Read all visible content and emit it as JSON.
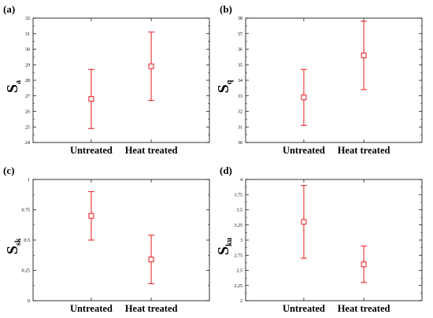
{
  "chart_data": [
    {
      "type": "scatter",
      "panel_label": "(a)",
      "ylabel": {
        "main": "S",
        "sub": "a"
      },
      "categories": [
        "Untreated",
        "Heat treated"
      ],
      "values": [
        26.8,
        28.9
      ],
      "error_low": [
        24.9,
        26.7
      ],
      "error_high": [
        28.7,
        31.1
      ],
      "ylim": [
        24,
        32
      ],
      "yticks": [
        24,
        25,
        26,
        27,
        28,
        29,
        30,
        31,
        32
      ],
      "ytick_labels": [
        "24",
        "25",
        "26",
        "27",
        "28",
        "29",
        "30",
        "31",
        "32"
      ],
      "marker": "open-square",
      "color": "#e8191c",
      "grid": false
    },
    {
      "type": "scatter",
      "panel_label": "(b)",
      "ylabel": {
        "main": "S",
        "sub": "q"
      },
      "categories": [
        "Untreated",
        "Heat treated"
      ],
      "values": [
        32.9,
        35.6
      ],
      "error_low": [
        31.1,
        33.4
      ],
      "error_high": [
        34.7,
        37.8
      ],
      "ylim": [
        30,
        38
      ],
      "yticks": [
        30,
        31,
        32,
        33,
        34,
        35,
        36,
        37,
        38
      ],
      "ytick_labels": [
        "30",
        "31",
        "32",
        "33",
        "34",
        "35",
        "36",
        "37",
        "38"
      ],
      "marker": "open-square",
      "color": "#e8191c",
      "grid": false
    },
    {
      "type": "scatter",
      "panel_label": "(c)",
      "ylabel": {
        "main": "S",
        "sub": "sk"
      },
      "categories": [
        "Untreated",
        "Heat treated"
      ],
      "values": [
        0.7,
        0.34
      ],
      "error_low": [
        0.5,
        0.14
      ],
      "error_high": [
        0.9,
        0.54
      ],
      "ylim": [
        0,
        1
      ],
      "yticks": [
        0,
        0.25,
        0.5,
        0.75,
        1
      ],
      "ytick_labels": [
        "0",
        "0.25",
        "0.5",
        "0.75",
        "1"
      ],
      "marker": "open-square",
      "color": "#e8191c",
      "grid": false
    },
    {
      "type": "scatter",
      "panel_label": "(d)",
      "ylabel": {
        "main": "S",
        "sub": "ku"
      },
      "categories": [
        "Untreated",
        "Heat treated"
      ],
      "values": [
        3.3,
        2.6
      ],
      "error_low": [
        2.7,
        2.3
      ],
      "error_high": [
        3.9,
        2.9
      ],
      "ylim": [
        2,
        4
      ],
      "yticks": [
        2,
        2.25,
        2.5,
        2.75,
        3,
        3.25,
        3.5,
        3.75,
        4
      ],
      "ytick_labels": [
        "2",
        "2.25",
        "2.5",
        "2.75",
        "3",
        "3.25",
        "3.5",
        "3.75",
        "4"
      ],
      "marker": "open-square",
      "color": "#e8191c",
      "grid": false
    }
  ]
}
